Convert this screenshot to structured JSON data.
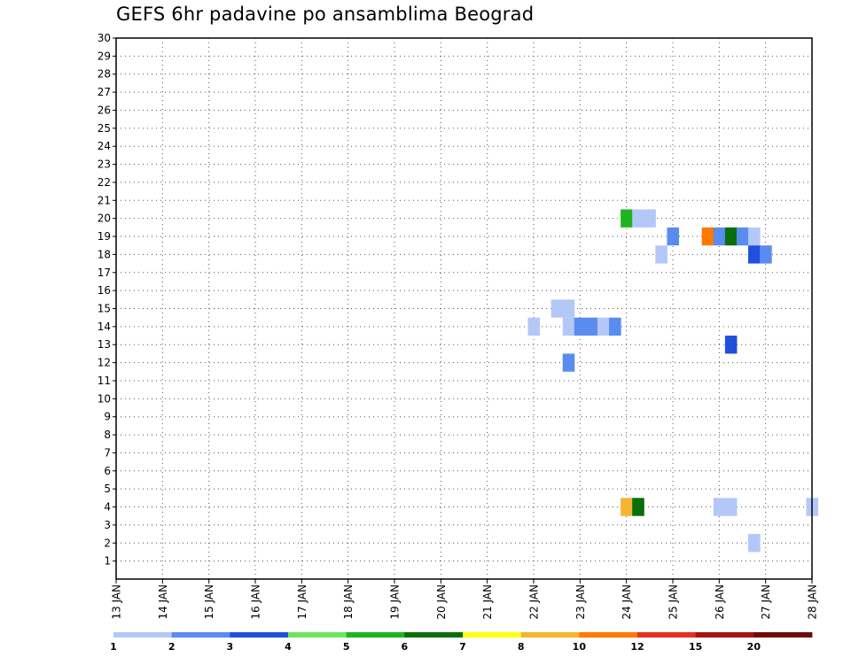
{
  "chart_data": {
    "type": "heatmap",
    "title": "GEFS 6hr padavine po ansamblima Beograd",
    "xlabel": "",
    "ylabel": "",
    "x_tick_labels": [
      "13 JAN",
      "14 JAN",
      "15 JAN",
      "16 JAN",
      "17 JAN",
      "18 JAN",
      "19 JAN",
      "20 JAN",
      "21 JAN",
      "22 JAN",
      "23 JAN",
      "24 JAN",
      "25 JAN",
      "26 JAN",
      "27 JAN",
      "28 JAN"
    ],
    "y_ticks": [
      1,
      2,
      3,
      4,
      5,
      6,
      7,
      8,
      9,
      10,
      11,
      12,
      13,
      14,
      15,
      16,
      17,
      18,
      19,
      20,
      21,
      22,
      23,
      24,
      25,
      26,
      27,
      28,
      29,
      30
    ],
    "y_range": [
      0,
      30
    ],
    "x_range_days": [
      13,
      28
    ],
    "grid": true,
    "legend_position": "bottom",
    "color_scale": {
      "colors": [
        "#b4c8f8",
        "#5a8cf0",
        "#1e50dc",
        "#6ee65a",
        "#1eb41e",
        "#0a6e0a",
        "#ffff14",
        "#f5b432",
        "#ff7800",
        "#e6321e",
        "#a51414",
        "#6e0a0a"
      ],
      "labels": [
        "1",
        "2",
        "3",
        "4",
        "5",
        "6",
        "7",
        "8",
        "10",
        "12",
        "15",
        "20"
      ]
    },
    "values": [
      {
        "day": 24.0,
        "member": 20,
        "value": 5
      },
      {
        "day": 24.25,
        "member": 20,
        "value": 1
      },
      {
        "day": 24.5,
        "member": 20,
        "value": 1
      },
      {
        "day": 25.0,
        "member": 19,
        "value": 2
      },
      {
        "day": 25.75,
        "member": 19,
        "value": 10
      },
      {
        "day": 26.0,
        "member": 19,
        "value": 2
      },
      {
        "day": 26.25,
        "member": 19,
        "value": 6
      },
      {
        "day": 26.5,
        "member": 19,
        "value": 2
      },
      {
        "day": 26.75,
        "member": 19,
        "value": 1
      },
      {
        "day": 24.75,
        "member": 18,
        "value": 1
      },
      {
        "day": 26.75,
        "member": 18,
        "value": 3
      },
      {
        "day": 27.0,
        "member": 18,
        "value": 2
      },
      {
        "day": 22.5,
        "member": 15,
        "value": 1
      },
      {
        "day": 22.75,
        "member": 15,
        "value": 1
      },
      {
        "day": 22.0,
        "member": 14,
        "value": 1
      },
      {
        "day": 22.75,
        "member": 14,
        "value": 1
      },
      {
        "day": 23.0,
        "member": 14,
        "value": 2
      },
      {
        "day": 23.25,
        "member": 14,
        "value": 2
      },
      {
        "day": 23.5,
        "member": 14,
        "value": 1
      },
      {
        "day": 23.75,
        "member": 14,
        "value": 2
      },
      {
        "day": 26.25,
        "member": 13,
        "value": 3
      },
      {
        "day": 22.75,
        "member": 12,
        "value": 2
      },
      {
        "day": 24.0,
        "member": 4,
        "value": 8
      },
      {
        "day": 24.25,
        "member": 4,
        "value": 6
      },
      {
        "day": 26.0,
        "member": 4,
        "value": 1
      },
      {
        "day": 26.25,
        "member": 4,
        "value": 1
      },
      {
        "day": 28.0,
        "member": 4,
        "value": 1
      },
      {
        "day": 26.75,
        "member": 2,
        "value": 1
      }
    ]
  }
}
